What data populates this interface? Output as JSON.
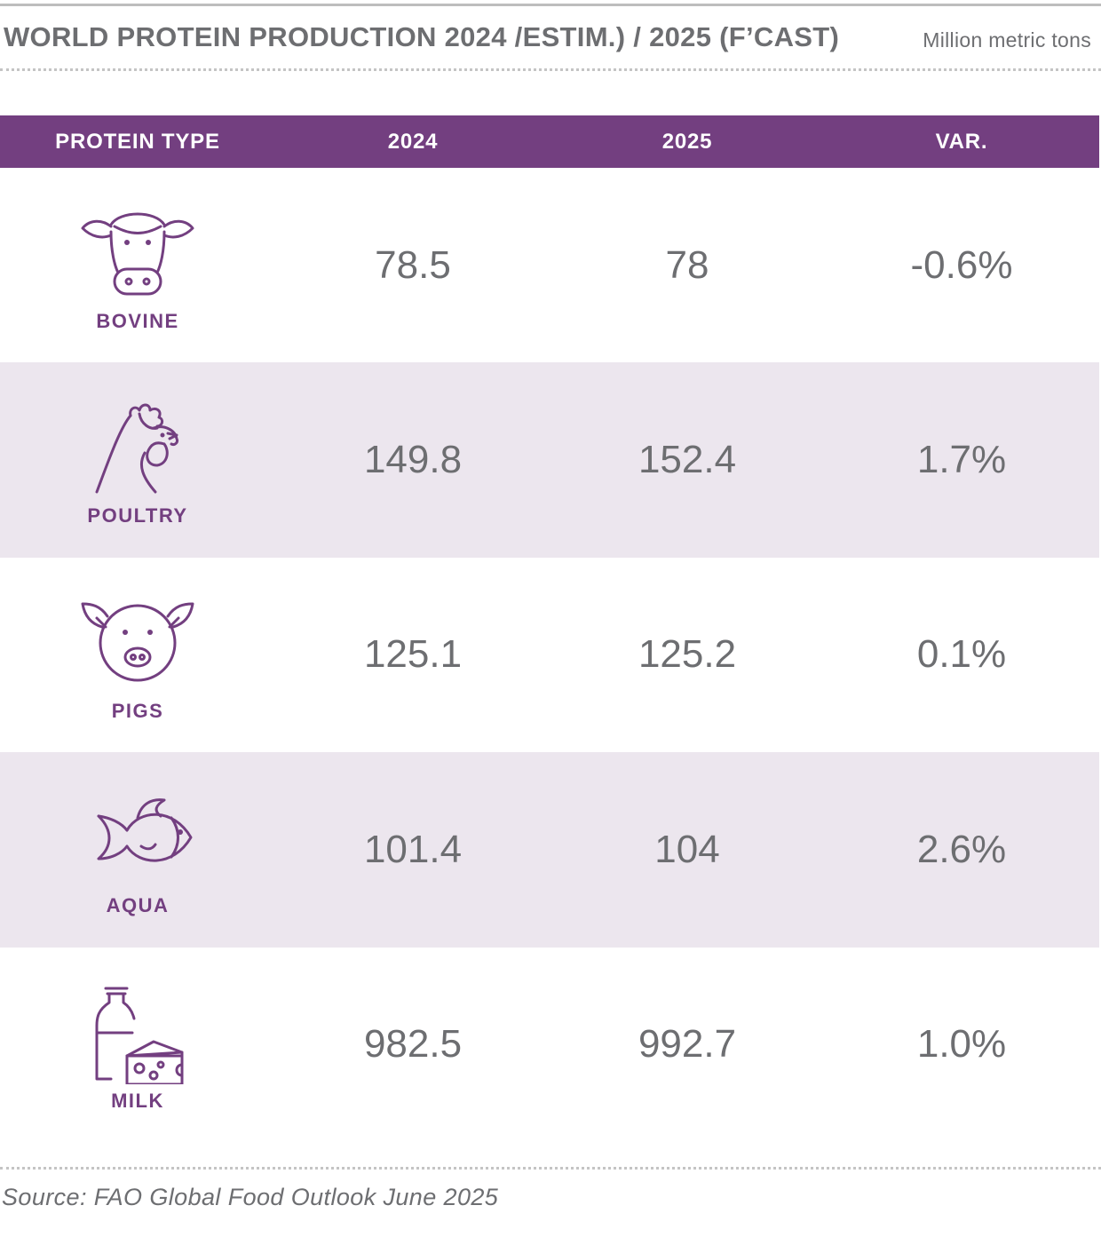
{
  "header": {
    "title": "WORLD PROTEIN PRODUCTION 2024 /ESTIM.) / 2025 (F’CAST)",
    "unit": "Million metric tons"
  },
  "colors": {
    "accent": "#733f80",
    "row_alt": "#ece6ee",
    "text": "#6d6e71"
  },
  "chart_data": {
    "type": "table",
    "columns": [
      "PROTEIN TYPE",
      "2024",
      "2025",
      "VAR."
    ],
    "rows": [
      {
        "type": "BOVINE",
        "icon": "cow-icon",
        "v2024": "78.5",
        "v2025": "78",
        "var": "-0.6%"
      },
      {
        "type": "POULTRY",
        "icon": "chicken-icon",
        "v2024": "149.8",
        "v2025": "152.4",
        "var": "1.7%"
      },
      {
        "type": "PIGS",
        "icon": "pig-icon",
        "v2024": "125.1",
        "v2025": "125.2",
        "var": "0.1%"
      },
      {
        "type": "AQUA",
        "icon": "fish-icon",
        "v2024": "101.4",
        "v2025": "104",
        "var": "2.6%"
      },
      {
        "type": "MILK",
        "icon": "milk-cheese-icon",
        "v2024": "982.5",
        "v2025": "992.7",
        "var": "1.0%"
      }
    ]
  },
  "footer": {
    "source": "Source: FAO Global Food Outlook June 2025"
  }
}
